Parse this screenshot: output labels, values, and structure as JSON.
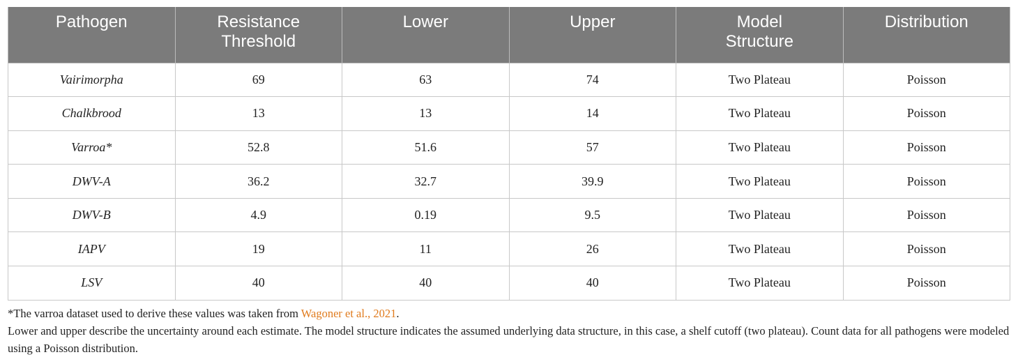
{
  "table": {
    "header": [
      "Pathogen",
      "Resistance Threshold",
      "Lower",
      "Upper",
      "Model Structure",
      "Distribution"
    ],
    "rows": [
      [
        "Vairimorpha",
        "69",
        "63",
        "74",
        "Two Plateau",
        "Poisson"
      ],
      [
        "Chalkbrood",
        "13",
        "13",
        "14",
        "Two Plateau",
        "Poisson"
      ],
      [
        "Varroa*",
        "52.8",
        "51.6",
        "57",
        "Two Plateau",
        "Poisson"
      ],
      [
        "DWV-A",
        "36.2",
        "32.7",
        "39.9",
        "Two Plateau",
        "Poisson"
      ],
      [
        "DWV-B",
        "4.9",
        "0.19",
        "9.5",
        "Two Plateau",
        "Poisson"
      ],
      [
        "IAPV",
        "19",
        "11",
        "26",
        "Two Plateau",
        "Poisson"
      ],
      [
        "LSV",
        "40",
        "40",
        "40",
        "Two Plateau",
        "Poisson"
      ]
    ]
  },
  "footnotes": {
    "note": {
      "before": "*The varroa dataset used to derive these values was taken from ",
      "link": "Wagoner et al., 2021",
      "after": "."
    },
    "description": "Lower and upper describe the uncertainty around each estimate. The model structure indicates the assumed underlying data structure, in this case, a shelf cutoff (two plateau). Count data for all pathogens were modeled using a Poisson distribution."
  }
}
